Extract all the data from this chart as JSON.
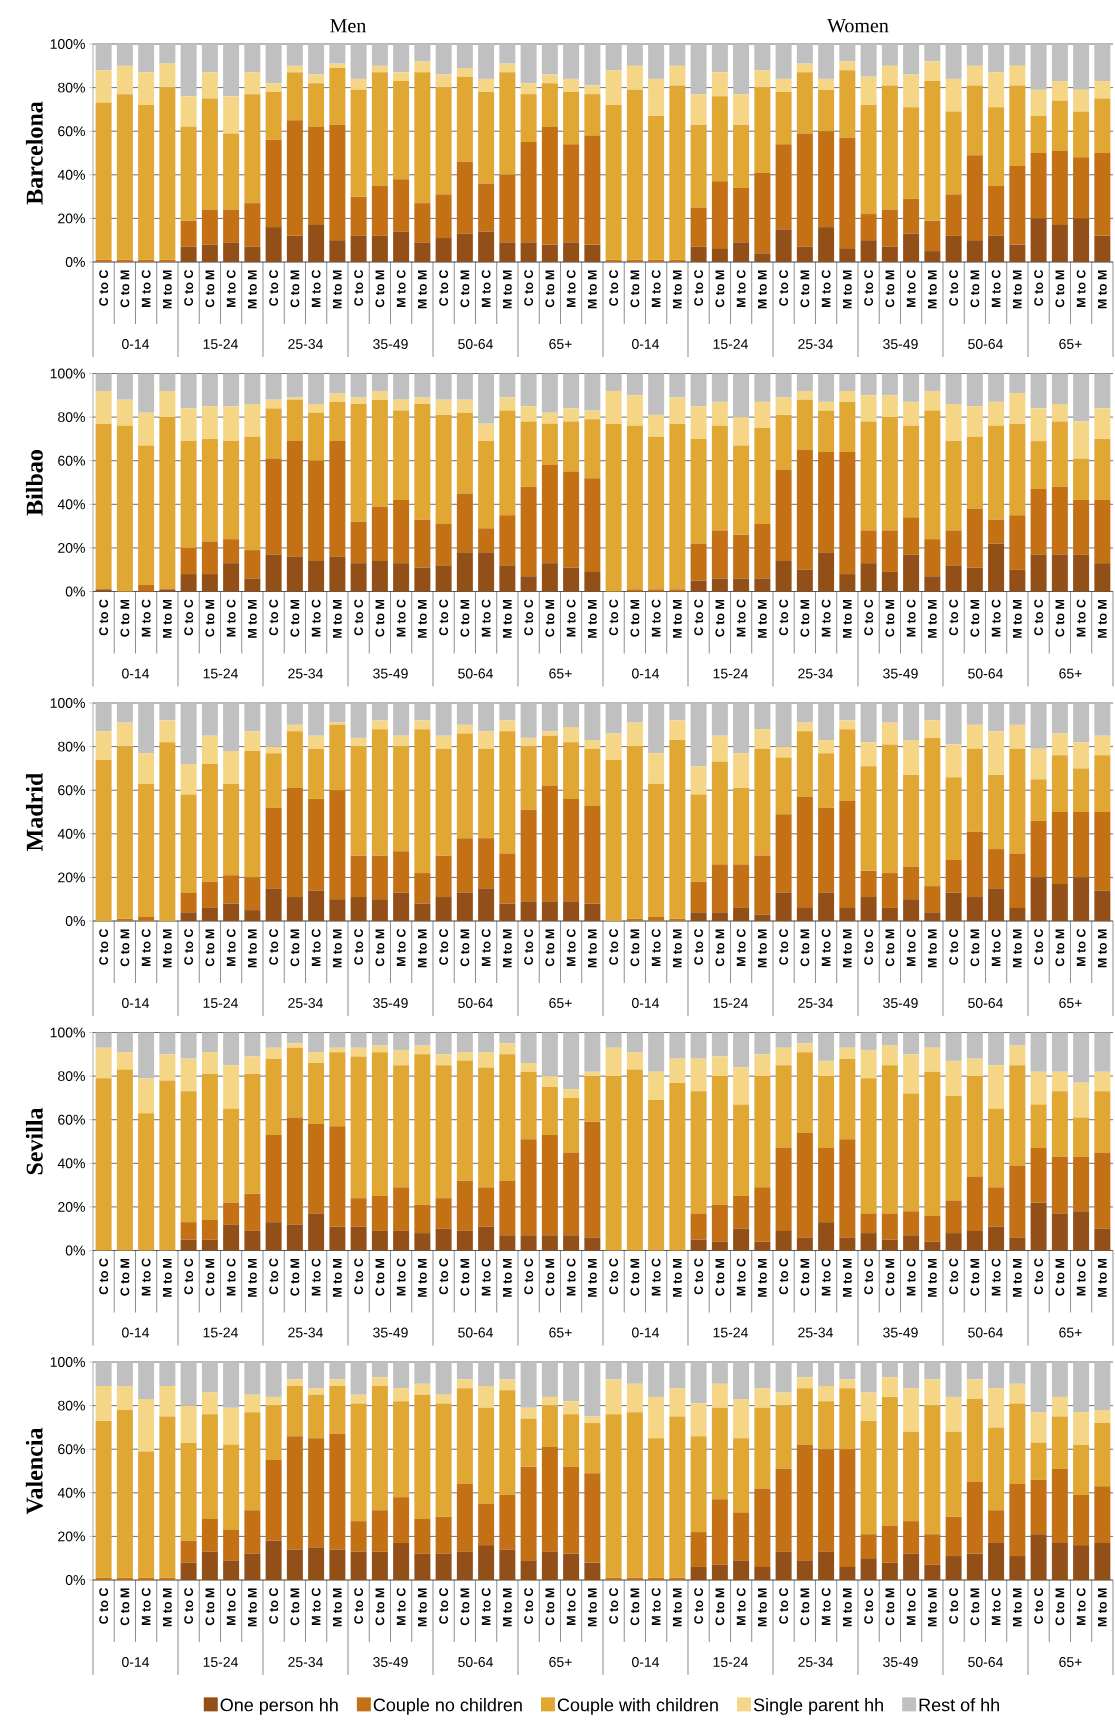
{
  "chart_data": [
    {
      "type": "bar",
      "stacked": true,
      "ylabel": "Barcelona",
      "grid": "y",
      "ylim": [
        0,
        100
      ],
      "yticks": [
        {
          "value": 0,
          "label": "0%"
        },
        {
          "value": 20,
          "label": "20%"
        },
        {
          "value": 40,
          "label": "40%"
        },
        {
          "value": 60,
          "label": "60%"
        },
        {
          "value": 80,
          "label": "80%"
        },
        {
          "value": 100,
          "label": "100%"
        }
      ],
      "categories": [
        "C to C",
        "C to M",
        "M to C",
        "M to M",
        "C to C",
        "C to M",
        "M to C",
        "M to M",
        "C to C",
        "C to M",
        "M to C",
        "M to M",
        "C to C",
        "C to M",
        "M to C",
        "M to M",
        "C to C",
        "C to M",
        "M to C",
        "M to M",
        "C to C",
        "C to M",
        "M to C",
        "M to M",
        "C to C",
        "C to M",
        "M to C",
        "M to M",
        "C to C",
        "C to M",
        "M to C",
        "M to M",
        "C to C",
        "C to M",
        "M to C",
        "M to M",
        "C to C",
        "C to M",
        "M to C",
        "M to M",
        "C to C",
        "C to M",
        "M to C",
        "M to M",
        "C to C",
        "C to M",
        "M to C",
        "M to M"
      ],
      "annotations": [
        "Men",
        "Women",
        "0-14",
        "15-24",
        "25-34",
        "35-49",
        "50-64",
        "65+",
        "0-14",
        "15-24",
        "25-34",
        "35-49",
        "50-64",
        "65+"
      ],
      "series": [
        {
          "color": "#925018",
          "values": [
            0,
            0,
            0,
            0,
            7,
            8,
            9,
            7,
            16,
            12,
            17,
            10,
            12,
            12,
            14,
            9,
            11,
            13,
            14,
            9,
            9,
            8,
            9,
            8,
            0,
            0,
            0,
            0,
            7,
            6,
            9,
            4,
            15,
            7,
            16,
            6,
            10,
            7,
            13,
            5,
            12,
            10,
            12,
            8,
            20,
            17,
            20,
            12
          ]
        },
        {
          "color": "#c47116",
          "values": [
            1,
            1,
            1,
            1,
            12,
            16,
            15,
            20,
            40,
            53,
            45,
            53,
            18,
            23,
            24,
            18,
            20,
            33,
            22,
            31,
            46,
            54,
            45,
            50,
            1,
            1,
            1,
            1,
            18,
            31,
            25,
            37,
            39,
            52,
            44,
            51,
            12,
            17,
            16,
            14,
            19,
            39,
            23,
            36,
            30,
            34,
            28,
            38
          ]
        },
        {
          "color": "#e0a733",
          "values": [
            72,
            76,
            71,
            79,
            43,
            51,
            35,
            50,
            22,
            22,
            20,
            26,
            49,
            52,
            45,
            60,
            49,
            39,
            42,
            47,
            22,
            20,
            24,
            19,
            71,
            78,
            66,
            80,
            38,
            39,
            29,
            39,
            24,
            28,
            19,
            31,
            50,
            57,
            42,
            64,
            38,
            32,
            36,
            37,
            17,
            23,
            21,
            25
          ]
        },
        {
          "color": "#f4d686",
          "values": [
            15,
            13,
            15,
            11,
            14,
            12,
            17,
            10,
            4,
            3,
            4,
            2,
            5,
            3,
            4,
            5,
            6,
            4,
            6,
            4,
            5,
            4,
            6,
            4,
            16,
            11,
            17,
            9,
            14,
            11,
            14,
            8,
            6,
            4,
            5,
            4,
            13,
            9,
            15,
            9,
            15,
            9,
            16,
            9,
            12,
            9,
            10,
            8
          ]
        },
        {
          "color": "#c0c0c0",
          "values": [
            12,
            10,
            13,
            9,
            24,
            13,
            24,
            13,
            18,
            10,
            14,
            9,
            16,
            10,
            13,
            8,
            14,
            11,
            16,
            9,
            18,
            14,
            16,
            19,
            12,
            10,
            16,
            10,
            23,
            13,
            23,
            12,
            16,
            9,
            16,
            8,
            15,
            10,
            14,
            8,
            16,
            10,
            13,
            10,
            21,
            17,
            21,
            17
          ]
        }
      ]
    },
    {
      "type": "bar",
      "stacked": true,
      "ylabel": "Bilbao",
      "grid": "y",
      "ylim": [
        0,
        100
      ],
      "yticks": [
        {
          "value": 0,
          "label": "0%"
        },
        {
          "value": 20,
          "label": "20%"
        },
        {
          "value": 40,
          "label": "40%"
        },
        {
          "value": 60,
          "label": "60%"
        },
        {
          "value": 80,
          "label": "80%"
        },
        {
          "value": 100,
          "label": "100%"
        }
      ],
      "categories": [
        "C to C",
        "C to M",
        "M to C",
        "M to M",
        "C to C",
        "C to M",
        "M to C",
        "M to M",
        "C to C",
        "C to M",
        "M to C",
        "M to M",
        "C to C",
        "C to M",
        "M to C",
        "M to M",
        "C to C",
        "C to M",
        "M to C",
        "M to M",
        "C to C",
        "C to M",
        "M to C",
        "M to M",
        "C to C",
        "C to M",
        "M to C",
        "M to M",
        "C to C",
        "C to M",
        "M to C",
        "M to M",
        "C to C",
        "C to M",
        "M to C",
        "M to M",
        "C to C",
        "C to M",
        "M to C",
        "M to M",
        "C to C",
        "C to M",
        "M to C",
        "M to M",
        "C to C",
        "C to M",
        "M to C",
        "M to M"
      ],
      "annotations": [
        "0-14",
        "15-24",
        "25-34",
        "35-49",
        "50-64",
        "65+",
        "0-14",
        "15-24",
        "25-34",
        "35-49",
        "50-64",
        "65+"
      ],
      "series": [
        {
          "color": "#925018",
          "values": [
            1,
            0,
            0,
            1,
            8,
            8,
            13,
            6,
            17,
            16,
            14,
            16,
            13,
            14,
            13,
            11,
            12,
            18,
            18,
            12,
            7,
            13,
            11,
            9,
            0,
            0,
            0,
            0,
            5,
            6,
            6,
            6,
            14,
            10,
            18,
            8,
            13,
            9,
            17,
            7,
            12,
            11,
            22,
            10,
            17,
            17,
            17,
            13
          ]
        },
        {
          "color": "#c47116",
          "values": [
            0,
            0,
            3,
            0,
            12,
            15,
            11,
            13,
            44,
            53,
            46,
            53,
            19,
            25,
            29,
            22,
            19,
            27,
            11,
            23,
            41,
            45,
            44,
            43,
            0,
            1,
            1,
            1,
            17,
            22,
            20,
            25,
            42,
            55,
            46,
            56,
            15,
            19,
            17,
            17,
            16,
            27,
            11,
            25,
            30,
            31,
            25,
            29
          ]
        },
        {
          "color": "#e0a733",
          "values": [
            76,
            76,
            64,
            79,
            49,
            47,
            45,
            52,
            23,
            19,
            22,
            18,
            54,
            49,
            41,
            53,
            50,
            37,
            40,
            48,
            30,
            19,
            23,
            27,
            77,
            75,
            70,
            76,
            48,
            48,
            41,
            44,
            25,
            23,
            19,
            23,
            50,
            52,
            42,
            59,
            41,
            33,
            43,
            42,
            22,
            30,
            19,
            28
          ]
        },
        {
          "color": "#f4d686",
          "values": [
            15,
            12,
            15,
            12,
            15,
            15,
            16,
            15,
            4,
            1,
            4,
            4,
            3,
            4,
            5,
            3,
            7,
            6,
            8,
            6,
            7,
            5,
            6,
            4,
            15,
            14,
            10,
            12,
            15,
            11,
            13,
            12,
            8,
            4,
            4,
            5,
            12,
            10,
            11,
            9,
            17,
            14,
            11,
            14,
            15,
            8,
            17,
            14
          ]
        },
        {
          "color": "#c0c0c0",
          "values": [
            8,
            12,
            18,
            8,
            16,
            15,
            15,
            14,
            12,
            11,
            14,
            9,
            11,
            8,
            12,
            11,
            12,
            12,
            23,
            11,
            15,
            18,
            16,
            17,
            8,
            10,
            19,
            11,
            15,
            13,
            20,
            13,
            11,
            8,
            13,
            8,
            10,
            10,
            13,
            8,
            14,
            15,
            13,
            9,
            16,
            14,
            22,
            16
          ]
        }
      ]
    },
    {
      "type": "bar",
      "stacked": true,
      "ylabel": "Madrid",
      "grid": "y",
      "ylim": [
        0,
        100
      ],
      "yticks": [
        {
          "value": 0,
          "label": "0%"
        },
        {
          "value": 20,
          "label": "20%"
        },
        {
          "value": 40,
          "label": "40%"
        },
        {
          "value": 60,
          "label": "60%"
        },
        {
          "value": 80,
          "label": "80%"
        },
        {
          "value": 100,
          "label": "100%"
        }
      ],
      "categories": [
        "C to C",
        "C to M",
        "M to C",
        "M to M",
        "C to C",
        "C to M",
        "M to C",
        "M to M",
        "C to C",
        "C to M",
        "M to C",
        "M to M",
        "C to C",
        "C to M",
        "M to C",
        "M to M",
        "C to C",
        "C to M",
        "M to C",
        "M to M",
        "C to C",
        "C to M",
        "M to C",
        "M to M",
        "C to C",
        "C to M",
        "M to C",
        "M to M",
        "C to C",
        "C to M",
        "M to C",
        "M to M",
        "C to C",
        "C to M",
        "M to C",
        "M to M",
        "C to C",
        "C to M",
        "M to C",
        "M to M",
        "C to C",
        "C to M",
        "M to C",
        "M to M",
        "C to C",
        "C to M",
        "M to C",
        "M to M"
      ],
      "annotations": [
        "0-14",
        "15-24",
        "25-34",
        "35-49",
        "50-64",
        "65+",
        "0-14",
        "15-24",
        "25-34",
        "35-49",
        "50-64",
        "65+"
      ],
      "series": [
        {
          "color": "#925018",
          "values": [
            0,
            0,
            0,
            0,
            4,
            6,
            8,
            5,
            15,
            11,
            14,
            10,
            11,
            10,
            13,
            8,
            11,
            13,
            15,
            8,
            9,
            9,
            9,
            8,
            0,
            0,
            0,
            0,
            4,
            4,
            6,
            3,
            13,
            6,
            13,
            6,
            11,
            6,
            10,
            4,
            13,
            11,
            15,
            6,
            20,
            17,
            20,
            14
          ]
        },
        {
          "color": "#c47116",
          "values": [
            0,
            1,
            2,
            0,
            9,
            12,
            13,
            15,
            37,
            50,
            42,
            50,
            19,
            20,
            19,
            14,
            19,
            25,
            23,
            23,
            42,
            53,
            47,
            45,
            0,
            1,
            2,
            1,
            14,
            22,
            20,
            27,
            36,
            51,
            39,
            49,
            12,
            16,
            15,
            12,
            15,
            30,
            18,
            25,
            26,
            33,
            30,
            36
          ]
        },
        {
          "color": "#e0a733",
          "values": [
            74,
            79,
            61,
            82,
            45,
            54,
            42,
            58,
            25,
            26,
            23,
            30,
            50,
            58,
            48,
            66,
            49,
            48,
            41,
            56,
            29,
            23,
            26,
            26,
            74,
            79,
            61,
            82,
            40,
            47,
            35,
            49,
            26,
            30,
            25,
            33,
            48,
            59,
            42,
            68,
            38,
            38,
            34,
            48,
            19,
            26,
            20,
            26
          ]
        },
        {
          "color": "#f4d686",
          "values": [
            13,
            11,
            14,
            10,
            14,
            13,
            15,
            9,
            3,
            3,
            6,
            1,
            4,
            4,
            5,
            4,
            6,
            4,
            8,
            5,
            4,
            2,
            7,
            4,
            12,
            11,
            14,
            9,
            13,
            12,
            16,
            9,
            5,
            4,
            6,
            4,
            11,
            10,
            16,
            8,
            15,
            11,
            20,
            11,
            14,
            10,
            12,
            9
          ]
        },
        {
          "color": "#c0c0c0",
          "values": [
            13,
            9,
            23,
            8,
            28,
            15,
            22,
            13,
            20,
            10,
            15,
            9,
            16,
            8,
            15,
            8,
            15,
            10,
            13,
            8,
            16,
            13,
            11,
            17,
            14,
            9,
            23,
            8,
            29,
            15,
            23,
            12,
            20,
            9,
            17,
            8,
            18,
            9,
            17,
            8,
            19,
            10,
            13,
            10,
            21,
            14,
            18,
            15
          ]
        }
      ]
    },
    {
      "type": "bar",
      "stacked": true,
      "ylabel": "Sevilla",
      "grid": "y",
      "ylim": [
        0,
        100
      ],
      "yticks": [
        {
          "value": 0,
          "label": "0%"
        },
        {
          "value": 20,
          "label": "20%"
        },
        {
          "value": 40,
          "label": "40%"
        },
        {
          "value": 60,
          "label": "60%"
        },
        {
          "value": 80,
          "label": "80%"
        },
        {
          "value": 100,
          "label": "100%"
        }
      ],
      "categories": [
        "C to C",
        "C to M",
        "M to C",
        "M to M",
        "C to C",
        "C to M",
        "M to C",
        "M to M",
        "C to C",
        "C to M",
        "M to C",
        "M to M",
        "C to C",
        "C to M",
        "M to C",
        "M to M",
        "C to C",
        "C to M",
        "M to C",
        "M to M",
        "C to C",
        "C to M",
        "M to C",
        "M to M",
        "C to C",
        "C to M",
        "M to C",
        "M to M",
        "C to C",
        "C to M",
        "M to C",
        "M to M",
        "C to C",
        "C to M",
        "M to C",
        "M to M",
        "C to C",
        "C to M",
        "M to C",
        "M to M",
        "C to C",
        "C to M",
        "M to C",
        "M to M",
        "C to C",
        "C to M",
        "M to C",
        "M to M"
      ],
      "annotations": [
        "0-14",
        "15-24",
        "25-34",
        "35-49",
        "50-64",
        "65+",
        "0-14",
        "15-24",
        "25-34",
        "35-49",
        "50-64",
        "65+"
      ],
      "series": [
        {
          "color": "#925018",
          "values": [
            0,
            0,
            0,
            0,
            5,
            5,
            12,
            9,
            13,
            12,
            17,
            11,
            11,
            9,
            9,
            8,
            10,
            9,
            11,
            7,
            7,
            7,
            7,
            6,
            0,
            0,
            0,
            0,
            5,
            4,
            10,
            4,
            9,
            6,
            13,
            6,
            8,
            5,
            7,
            4,
            8,
            9,
            11,
            6,
            22,
            17,
            18,
            10
          ]
        },
        {
          "color": "#c47116",
          "values": [
            0,
            0,
            0,
            0,
            8,
            9,
            10,
            17,
            40,
            49,
            41,
            46,
            13,
            16,
            20,
            13,
            14,
            23,
            18,
            25,
            44,
            46,
            38,
            53,
            0,
            0,
            0,
            0,
            12,
            17,
            15,
            25,
            38,
            48,
            34,
            45,
            9,
            12,
            11,
            12,
            15,
            25,
            18,
            33,
            25,
            26,
            25,
            35
          ]
        },
        {
          "color": "#e0a733",
          "values": [
            79,
            83,
            63,
            78,
            60,
            67,
            43,
            55,
            35,
            32,
            28,
            34,
            65,
            66,
            56,
            69,
            61,
            55,
            55,
            58,
            31,
            22,
            25,
            21,
            80,
            83,
            69,
            77,
            56,
            59,
            42,
            51,
            38,
            37,
            33,
            37,
            62,
            68,
            54,
            66,
            48,
            46,
            36,
            46,
            20,
            30,
            18,
            28
          ]
        },
        {
          "color": "#f4d686",
          "values": [
            14,
            8,
            16,
            12,
            15,
            10,
            20,
            8,
            5,
            2,
            5,
            2,
            4,
            3,
            7,
            4,
            5,
            4,
            7,
            5,
            4,
            5,
            4,
            2,
            13,
            8,
            13,
            11,
            15,
            9,
            17,
            10,
            8,
            4,
            7,
            5,
            13,
            9,
            18,
            11,
            16,
            8,
            20,
            9,
            15,
            9,
            16,
            9
          ]
        },
        {
          "color": "#c0c0c0",
          "values": [
            7,
            9,
            21,
            10,
            12,
            9,
            15,
            11,
            7,
            5,
            9,
            7,
            7,
            6,
            8,
            6,
            10,
            9,
            9,
            5,
            14,
            20,
            26,
            18,
            7,
            9,
            18,
            12,
            12,
            11,
            16,
            10,
            7,
            5,
            13,
            7,
            8,
            6,
            10,
            7,
            13,
            12,
            15,
            6,
            18,
            18,
            23,
            18
          ]
        }
      ]
    },
    {
      "type": "bar",
      "stacked": true,
      "ylabel": "Valencia",
      "grid": "y",
      "ylim": [
        0,
        100
      ],
      "legend": "bottom",
      "yticks": [
        {
          "value": 0,
          "label": "0%"
        },
        {
          "value": 20,
          "label": "20%"
        },
        {
          "value": 40,
          "label": "40%"
        },
        {
          "value": 60,
          "label": "60%"
        },
        {
          "value": 80,
          "label": "80%"
        },
        {
          "value": 100,
          "label": "100%"
        }
      ],
      "categories": [
        "C to C",
        "C to M",
        "M to C",
        "M to M",
        "C to C",
        "C to M",
        "M to C",
        "M to M",
        "C to C",
        "C to M",
        "M to C",
        "M to M",
        "C to C",
        "C to M",
        "M to C",
        "M to M",
        "C to C",
        "C to M",
        "M to C",
        "M to M",
        "C to C",
        "C to M",
        "M to C",
        "M to M",
        "C to C",
        "C to M",
        "M to C",
        "M to M",
        "C to C",
        "C to M",
        "M to C",
        "M to M",
        "C to C",
        "C to M",
        "M to C",
        "M to M",
        "C to C",
        "C to M",
        "M to C",
        "M to M",
        "C to C",
        "C to M",
        "M to C",
        "M to M",
        "C to C",
        "C to M",
        "M to C",
        "M to M"
      ],
      "annotations": [
        "0-14",
        "15-24",
        "25-34",
        "35-49",
        "50-64",
        "65+",
        "0-14",
        "15-24",
        "25-34",
        "35-49",
        "50-64",
        "65+"
      ],
      "series": [
        {
          "name": "One person hh",
          "color": "#925018",
          "values": [
            0,
            0,
            0,
            0,
            8,
            13,
            9,
            12,
            18,
            14,
            15,
            14,
            13,
            13,
            17,
            12,
            12,
            13,
            16,
            14,
            9,
            13,
            12,
            8,
            0,
            0,
            0,
            0,
            6,
            7,
            9,
            6,
            13,
            9,
            13,
            6,
            10,
            8,
            12,
            7,
            11,
            12,
            17,
            11,
            21,
            17,
            16,
            17
          ]
        },
        {
          "name": "Couple no children",
          "color": "#c47116",
          "values": [
            1,
            1,
            1,
            1,
            10,
            15,
            14,
            20,
            37,
            52,
            50,
            53,
            14,
            19,
            21,
            16,
            17,
            31,
            19,
            25,
            43,
            48,
            40,
            41,
            1,
            1,
            1,
            1,
            16,
            30,
            22,
            36,
            38,
            53,
            47,
            54,
            11,
            17,
            15,
            14,
            18,
            33,
            15,
            33,
            25,
            34,
            23,
            26
          ]
        },
        {
          "name": "Couple with children",
          "color": "#e0a733",
          "values": [
            72,
            77,
            58,
            74,
            45,
            48,
            39,
            45,
            25,
            23,
            20,
            22,
            54,
            57,
            44,
            57,
            52,
            44,
            44,
            48,
            22,
            19,
            24,
            23,
            75,
            76,
            64,
            74,
            44,
            42,
            34,
            37,
            29,
            26,
            22,
            28,
            52,
            59,
            41,
            59,
            39,
            38,
            38,
            37,
            17,
            24,
            23,
            29
          ]
        },
        {
          "name": "Single parent hh",
          "color": "#f4d686",
          "values": [
            16,
            11,
            24,
            14,
            17,
            10,
            17,
            8,
            4,
            3,
            3,
            3,
            4,
            4,
            6,
            5,
            4,
            4,
            10,
            5,
            5,
            4,
            6,
            3,
            16,
            13,
            19,
            13,
            15,
            11,
            18,
            9,
            6,
            5,
            7,
            4,
            13,
            9,
            20,
            12,
            16,
            9,
            18,
            9,
            14,
            9,
            15,
            6
          ]
        },
        {
          "name": "Rest of hh",
          "color": "#c0c0c0",
          "values": [
            11,
            11,
            17,
            11,
            20,
            14,
            21,
            15,
            16,
            8,
            12,
            8,
            15,
            7,
            12,
            10,
            15,
            8,
            11,
            8,
            21,
            16,
            18,
            25,
            8,
            10,
            16,
            12,
            19,
            10,
            17,
            12,
            14,
            7,
            11,
            8,
            14,
            7,
            12,
            8,
            16,
            8,
            12,
            10,
            23,
            16,
            23,
            22
          ]
        }
      ]
    }
  ]
}
